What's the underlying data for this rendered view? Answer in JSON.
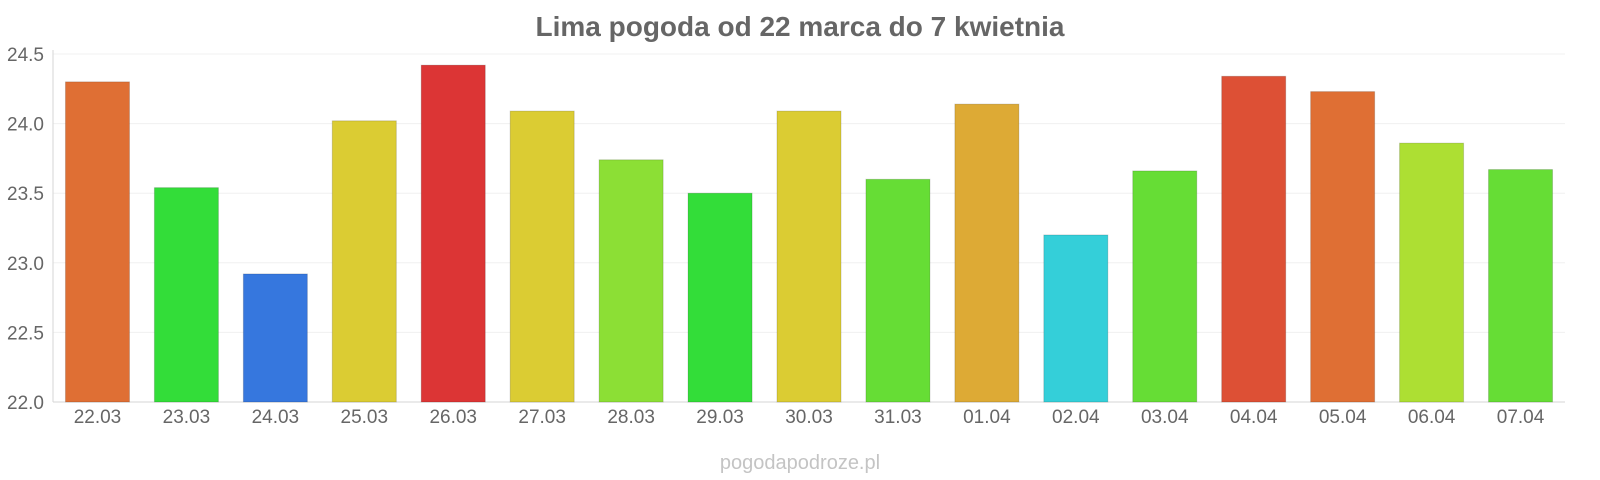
{
  "chart_data": {
    "type": "bar",
    "title": "Lima pogoda od 22 marca do 7 kwietnia",
    "xlabel": "",
    "ylabel": "",
    "categories": [
      "22.03",
      "23.03",
      "24.03",
      "25.03",
      "26.03",
      "27.03",
      "28.03",
      "29.03",
      "30.03",
      "31.03",
      "01.04",
      "02.04",
      "03.04",
      "04.04",
      "05.04",
      "06.04",
      "07.04"
    ],
    "values": [
      24.3,
      23.54,
      22.92,
      24.02,
      24.42,
      24.09,
      23.74,
      23.5,
      24.09,
      23.6,
      24.14,
      23.2,
      23.66,
      24.34,
      24.23,
      23.86,
      23.67
    ],
    "colors": [
      "#df6f34",
      "#33dd39",
      "#3677de",
      "#dbcc33",
      "#dc3535",
      "#dbcc33",
      "#8cdf35",
      "#33dd39",
      "#dbcc33",
      "#66dd35",
      "#ddaa35",
      "#34cfd9",
      "#66dd35",
      "#dd5035",
      "#df6f34",
      "#addf33",
      "#66dd35"
    ],
    "ylim": [
      22.0,
      24.5
    ],
    "yticks": [
      "22.0",
      "22.5",
      "23.0",
      "23.5",
      "24.0",
      "24.5"
    ],
    "grid": true,
    "legend": "none"
  },
  "credit": "pogodapodroze.pl"
}
